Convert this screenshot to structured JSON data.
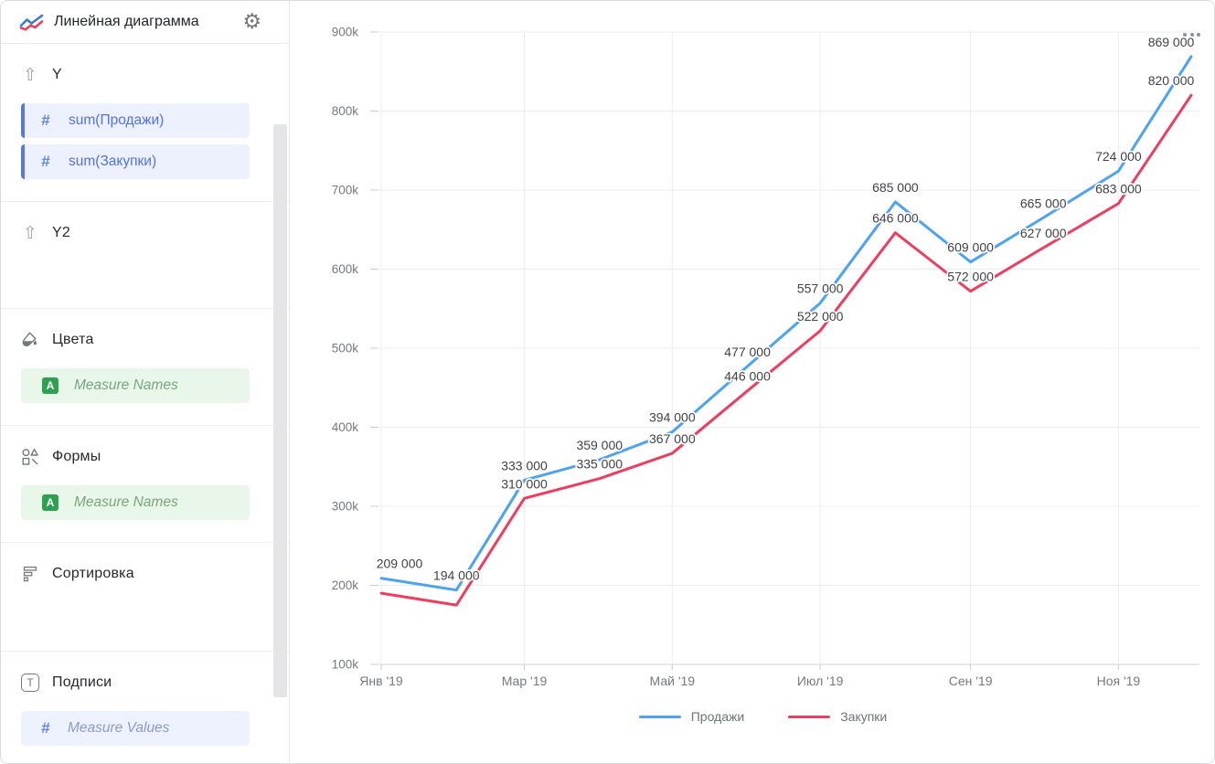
{
  "sidebar": {
    "title": "Линейная диаграмма",
    "sections": {
      "y": {
        "label": "Y",
        "fields": [
          "sum(Продажи)",
          "sum(Закупки)"
        ]
      },
      "y2": {
        "label": "Y2"
      },
      "colors": {
        "label": "Цвета",
        "placeholder": "Measure Names"
      },
      "shapes": {
        "label": "Формы",
        "placeholder": "Measure Names"
      },
      "sorting": {
        "label": "Сортировка"
      },
      "labels": {
        "label": "Подписи",
        "placeholder": "Measure Values"
      }
    }
  },
  "icons": {
    "arrow_up": "⇧",
    "gear": "⚙",
    "hash": "#",
    "letter_a": "A",
    "letter_t": "T"
  },
  "colors": {
    "series_sales_blue": "#4DA2F1",
    "series_purchases_red": "#EE3D5F",
    "field_chip_accent": "#5577EA",
    "measure_names_green": "#2DA14F"
  },
  "chart_data": {
    "type": "line",
    "x_point_count": 12,
    "x_day_offsets": [
      0,
      31,
      59,
      90,
      120,
      151,
      181,
      212,
      243,
      273,
      304,
      334
    ],
    "x_tick_indices": [
      0,
      2,
      4,
      6,
      8,
      10
    ],
    "x_tick_labels": [
      "Янв '19",
      "Мар '19",
      "Май '19",
      "Июл '19",
      "Сен '19",
      "Ноя '19"
    ],
    "ylim": [
      100000,
      900000
    ],
    "y_tick_values": [
      100000,
      200000,
      300000,
      400000,
      500000,
      600000,
      700000,
      800000,
      900000
    ],
    "y_tick_labels": [
      "100k",
      "200k",
      "300k",
      "400k",
      "500k",
      "600k",
      "700k",
      "800k",
      "900k"
    ],
    "grid": true,
    "legend_position": "bottom",
    "series": [
      {
        "name": "Продажи",
        "color": "#4DA2F1",
        "values": [
          209000,
          194000,
          333000,
          359000,
          394000,
          477000,
          557000,
          685000,
          609000,
          665000,
          724000,
          869000
        ]
      },
      {
        "name": "Закупки",
        "color": "#EE3D5F",
        "values": [
          190000,
          175000,
          310000,
          335000,
          367000,
          446000,
          522000,
          646000,
          572000,
          627000,
          683000,
          820000
        ],
        "hidden_label_indices": [
          0,
          1
        ]
      }
    ]
  }
}
